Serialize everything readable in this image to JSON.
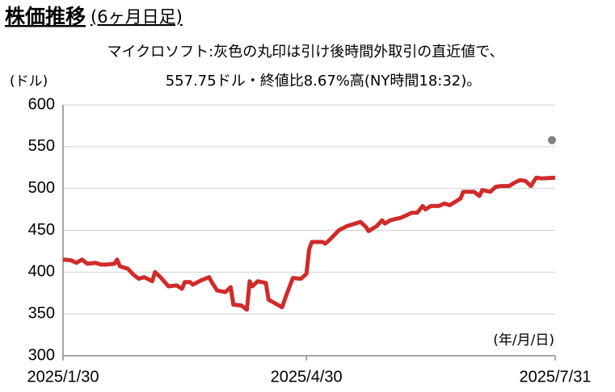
{
  "chart_data": {
    "type": "line",
    "title": "株価推移",
    "title_suffix": "(6ヶ月日足)",
    "subtitle_lines": [
      "マイクロソフト:灰色の丸印は引け後時間外取引の直近値で、",
      "557.75ドル・終値比8.67%高(NY時間18:32)。"
    ],
    "y_unit_label": "(ドル)",
    "x_unit_label": "(年/月/日)",
    "color": "#d12a2a",
    "x": [
      "2025-01-30",
      "2025-02-02",
      "2025-02-04",
      "2025-02-06",
      "2025-02-08",
      "2025-02-11",
      "2025-02-13",
      "2025-02-15",
      "2025-02-18",
      "2025-02-19",
      "2025-02-20",
      "2025-02-23",
      "2025-02-25",
      "2025-02-27",
      "2025-03-01",
      "2025-03-04",
      "2025-03-05",
      "2025-03-07",
      "2025-03-10",
      "2025-03-13",
      "2025-03-15",
      "2025-03-16",
      "2025-03-18",
      "2025-03-19",
      "2025-03-22",
      "2025-03-25",
      "2025-03-26",
      "2025-03-28",
      "2025-03-31",
      "2025-04-02",
      "2025-04-03",
      "2025-04-06",
      "2025-04-08",
      "2025-04-09",
      "2025-04-10",
      "2025-04-12",
      "2025-04-15",
      "2025-04-16",
      "2025-04-21",
      "2025-04-23",
      "2025-04-25",
      "2025-04-28",
      "2025-04-30",
      "2025-05-01",
      "2025-05-02",
      "2025-05-06",
      "2025-05-07",
      "2025-05-09",
      "2025-05-12",
      "2025-05-15",
      "2025-05-18",
      "2025-05-20",
      "2025-05-22",
      "2025-05-23",
      "2025-05-26",
      "2025-05-28",
      "2025-05-29",
      "2025-05-31",
      "2025-06-04",
      "2025-06-06",
      "2025-06-08",
      "2025-06-10",
      "2025-06-12",
      "2025-06-13",
      "2025-06-15",
      "2025-06-18",
      "2025-06-20",
      "2025-06-22",
      "2025-06-26",
      "2025-06-27",
      "2025-07-01",
      "2025-07-03",
      "2025-07-04",
      "2025-07-07",
      "2025-07-09",
      "2025-07-11",
      "2025-07-14",
      "2025-07-16",
      "2025-07-18",
      "2025-07-20",
      "2025-07-22",
      "2025-07-24",
      "2025-07-26",
      "2025-07-31"
    ],
    "values": [
      415,
      414,
      411,
      415,
      410,
      411,
      409,
      409,
      410,
      415,
      407,
      404,
      397,
      392,
      394,
      389,
      400,
      394,
      383,
      384,
      380,
      388,
      388,
      385,
      390,
      394,
      388,
      378,
      376,
      382,
      361,
      360,
      355,
      389,
      383,
      389,
      387,
      367,
      358,
      376,
      393,
      392,
      398,
      427,
      436,
      436,
      434,
      440,
      450,
      455,
      458,
      460,
      454,
      449,
      455,
      462,
      458,
      462,
      465,
      468,
      471,
      471,
      479,
      475,
      479,
      479,
      482,
      480,
      488,
      496,
      496,
      491,
      498,
      496,
      502,
      503,
      503,
      507,
      510,
      509,
      503,
      513,
      512,
      513
    ],
    "after_hours": {
      "x": "2025-07-31",
      "value": 557.75,
      "color": "#7f7f7f"
    },
    "xlim": [
      "2025-01-30",
      "2025-07-31"
    ],
    "xticks": [
      {
        "value": "2025-01-30",
        "label": "2025/1/30"
      },
      {
        "value": "2025-04-30",
        "label": "2025/4/30"
      },
      {
        "value": "2025-07-31",
        "label": "2025/7/31"
      }
    ],
    "ylim": [
      300,
      600
    ],
    "yticks": [
      300,
      350,
      400,
      450,
      500,
      550,
      600
    ],
    "grid": true
  }
}
